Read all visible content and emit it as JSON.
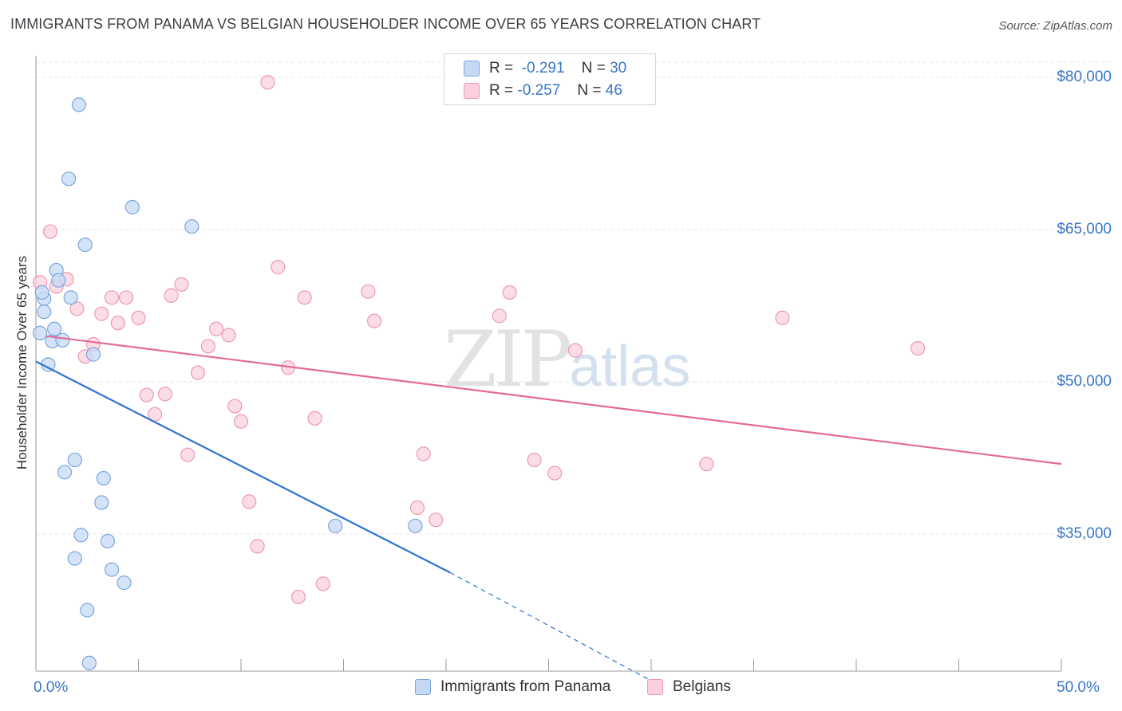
{
  "title": "IMMIGRANTS FROM PANAMA VS BELGIAN HOUSEHOLDER INCOME OVER 65 YEARS CORRELATION CHART",
  "source": "Source: ZipAtlas.com",
  "watermark": {
    "zip": "ZIP",
    "atlas": "atlas"
  },
  "colors": {
    "panama_fill": "#c5d9f5",
    "panama_stroke": "#7aa6dc",
    "panama_line": "#2f74d0",
    "belgian_fill": "#fbd0dc",
    "belgian_stroke": "#eb9ab3",
    "belgian_line": "#e36b96",
    "grid": "#e3e3e3",
    "tick_text": "#3a77c7"
  },
  "legend": {
    "panama": {
      "r_label": "R =",
      "r_value": "-0.291",
      "n_label": "N =",
      "n_value": "30"
    },
    "belgian": {
      "r_label": "R =",
      "r_value": "-0.257",
      "n_label": "N =",
      "n_value": "46"
    }
  },
  "bottom_legend": {
    "panama": "Immigrants from Panama",
    "belgian": "Belgians"
  },
  "chart_data": {
    "type": "scatter",
    "title": "IMMIGRANTS FROM PANAMA VS BELGIAN HOUSEHOLDER INCOME OVER 65 YEARS CORRELATION CHART",
    "xlabel": "",
    "ylabel": "Householder Income Over 65 years",
    "xlim": [
      0,
      50
    ],
    "ylim": [
      20000,
      82000
    ],
    "x_tick_labels": [
      "0.0%",
      "50.0%"
    ],
    "y_ticks": [
      35000,
      50000,
      65000,
      80000
    ],
    "y_tick_labels": [
      "$35,000",
      "$50,000",
      "$65,000",
      "$80,000"
    ],
    "grid": true,
    "series": [
      {
        "name": "Immigrants from Panama",
        "points": [
          [
            0.2,
            54800
          ],
          [
            0.4,
            58200
          ],
          [
            0.4,
            56900
          ],
          [
            0.6,
            51700
          ],
          [
            0.8,
            54000
          ],
          [
            0.9,
            55200
          ],
          [
            1.0,
            61000
          ],
          [
            1.1,
            60000
          ],
          [
            1.3,
            54100
          ],
          [
            1.4,
            41100
          ],
          [
            1.6,
            70000
          ],
          [
            1.7,
            58300
          ],
          [
            1.9,
            42300
          ],
          [
            1.9,
            32600
          ],
          [
            2.1,
            77300
          ],
          [
            2.2,
            34900
          ],
          [
            2.4,
            63500
          ],
          [
            2.5,
            27500
          ],
          [
            2.6,
            22300
          ],
          [
            2.8,
            52700
          ],
          [
            3.2,
            38100
          ],
          [
            3.3,
            40500
          ],
          [
            3.5,
            34300
          ],
          [
            3.7,
            31500
          ],
          [
            4.3,
            30200
          ],
          [
            4.7,
            67200
          ],
          [
            7.6,
            65300
          ],
          [
            14.6,
            35800
          ],
          [
            18.5,
            35800
          ],
          [
            0.3,
            58800
          ]
        ],
        "trend": {
          "x": [
            0,
            20.2
          ],
          "y": [
            52000,
            31200
          ],
          "dashed_to": {
            "x": 30.5,
            "y": 20000
          }
        }
      },
      {
        "name": "Belgians",
        "points": [
          [
            0.2,
            59800
          ],
          [
            0.7,
            64800
          ],
          [
            1.0,
            59400
          ],
          [
            1.5,
            60100
          ],
          [
            2.0,
            57200
          ],
          [
            2.4,
            52500
          ],
          [
            2.8,
            53700
          ],
          [
            3.2,
            56700
          ],
          [
            3.7,
            58300
          ],
          [
            4.0,
            55800
          ],
          [
            4.4,
            58300
          ],
          [
            5.0,
            56300
          ],
          [
            5.4,
            48700
          ],
          [
            5.8,
            46800
          ],
          [
            6.3,
            48800
          ],
          [
            6.6,
            58500
          ],
          [
            7.1,
            59600
          ],
          [
            7.4,
            42800
          ],
          [
            7.9,
            50900
          ],
          [
            8.4,
            53500
          ],
          [
            8.8,
            55200
          ],
          [
            9.4,
            54600
          ],
          [
            9.7,
            47600
          ],
          [
            10.0,
            46100
          ],
          [
            10.4,
            38200
          ],
          [
            10.8,
            33800
          ],
          [
            11.3,
            79500
          ],
          [
            11.8,
            61300
          ],
          [
            12.3,
            51400
          ],
          [
            12.8,
            28800
          ],
          [
            13.1,
            58300
          ],
          [
            13.6,
            46400
          ],
          [
            14.0,
            30100
          ],
          [
            16.2,
            58900
          ],
          [
            16.5,
            56000
          ],
          [
            18.6,
            37600
          ],
          [
            18.9,
            42900
          ],
          [
            19.5,
            36400
          ],
          [
            22.6,
            56500
          ],
          [
            23.1,
            58800
          ],
          [
            24.3,
            42300
          ],
          [
            25.3,
            41000
          ],
          [
            26.3,
            53100
          ],
          [
            32.7,
            41900
          ],
          [
            36.4,
            56300
          ],
          [
            43.0,
            53300
          ]
        ],
        "trend": {
          "x": [
            0.5,
            50
          ],
          "y": [
            54500,
            41900
          ]
        }
      }
    ]
  }
}
